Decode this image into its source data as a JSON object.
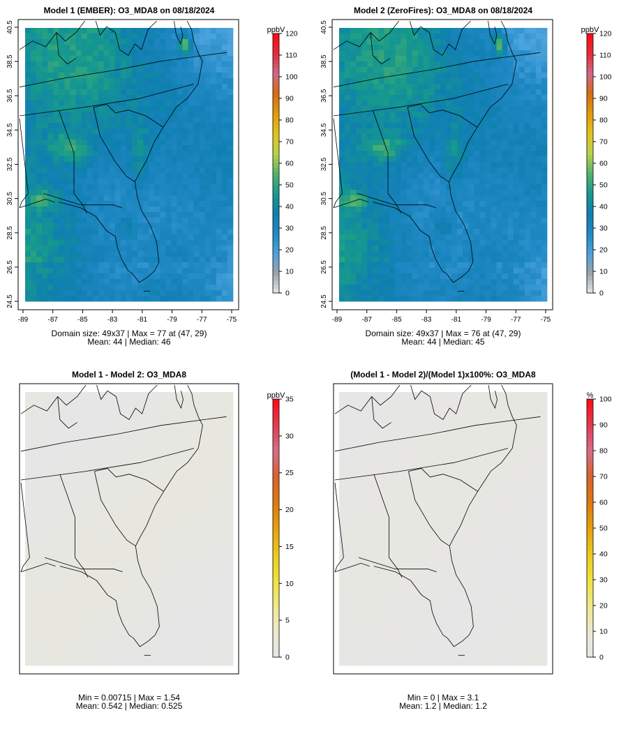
{
  "panels": [
    {
      "id": "m1",
      "title": "Model 1 (EMBER): O3_MDA8 on 08/18/2024",
      "unit": "ppbV",
      "variant": "ozone",
      "show_axes": true,
      "stats_line1": "Domain size: 49x37 | Max = 77 at (47, 29)",
      "stats_line2": "Mean: 44 |  Median: 46"
    },
    {
      "id": "m2",
      "title": "Model 2 (ZeroFires): O3_MDA8 on 08/18/2024",
      "unit": "ppbV",
      "variant": "ozone",
      "show_axes": true,
      "stats_line1": "Domain size: 49x37 | Max = 76 at (47, 29)",
      "stats_line2": "Mean: 44 |  Median: 45"
    },
    {
      "id": "diff",
      "title": "Model 1 - Model 2: O3_MDA8",
      "unit": "ppbV",
      "variant": "diff",
      "show_axes": false,
      "stats_line1": "Min = 0.00715 | Max = 1.54",
      "stats_line2": "Mean: 0.542 |  Median: 0.525"
    },
    {
      "id": "pct",
      "title": "(Model 1 - Model 2)/(Model 1)x100%: O3_MDA8",
      "unit": "%",
      "variant": "pct",
      "show_axes": false,
      "stats_line1": "Min = 0 | Max = 3.1",
      "stats_line2": "Mean: 1.2 |  Median: 1.2"
    }
  ],
  "chart_data": [
    {
      "type": "heatmap",
      "title": "Model 1 (EMBER): O3_MDA8 on 08/18/2024",
      "xlabel": "",
      "ylabel": "",
      "x_ticks": [
        "-89",
        "-87",
        "-85",
        "-83",
        "-81",
        "-79",
        "-77",
        "-75"
      ],
      "y_ticks": [
        "24.5",
        "26.5",
        "28.5",
        "30.5",
        "32.5",
        "34.5",
        "36.5",
        "38.5",
        "40.5"
      ],
      "xlim": [
        -89,
        -75
      ],
      "ylim": [
        24.5,
        40.5
      ],
      "colorbar_label": "ppbV",
      "colorbar_ticks": [
        "0",
        "10",
        "20",
        "30",
        "40",
        "50",
        "60",
        "70",
        "80",
        "90",
        "100",
        "110",
        "120"
      ],
      "colorbar_range": [
        0,
        120
      ],
      "domain_size": "49x37",
      "max": 77,
      "max_at": [
        47,
        29
      ],
      "mean": 44,
      "median": 46
    },
    {
      "type": "heatmap",
      "title": "Model 2 (ZeroFires): O3_MDA8 on 08/18/2024",
      "xlabel": "",
      "ylabel": "",
      "x_ticks": [
        "-89",
        "-87",
        "-85",
        "-83",
        "-81",
        "-79",
        "-77",
        "-75"
      ],
      "y_ticks": [
        "24.5",
        "26.5",
        "28.5",
        "30.5",
        "32.5",
        "34.5",
        "36.5",
        "38.5",
        "40.5"
      ],
      "xlim": [
        -89,
        -75
      ],
      "ylim": [
        24.5,
        40.5
      ],
      "colorbar_label": "ppbV",
      "colorbar_ticks": [
        "0",
        "10",
        "20",
        "30",
        "40",
        "50",
        "60",
        "70",
        "80",
        "90",
        "100",
        "110",
        "120"
      ],
      "colorbar_range": [
        0,
        120
      ],
      "domain_size": "49x37",
      "max": 76,
      "max_at": [
        47,
        29
      ],
      "mean": 44,
      "median": 45
    },
    {
      "type": "heatmap",
      "title": "Model 1 - Model 2: O3_MDA8",
      "colorbar_label": "ppbV",
      "colorbar_ticks": [
        "0",
        "5",
        "10",
        "15",
        "20",
        "25",
        "30",
        "35"
      ],
      "colorbar_range": [
        0,
        35
      ],
      "min": 0.00715,
      "max": 1.54,
      "mean": 0.542,
      "median": 0.525
    },
    {
      "type": "heatmap",
      "title": "(Model 1 - Model 2)/(Model 1)x100%: O3_MDA8",
      "colorbar_label": "%",
      "colorbar_ticks": [
        "0",
        "10",
        "20",
        "30",
        "40",
        "50",
        "60",
        "70",
        "80",
        "90",
        "100"
      ],
      "colorbar_range": [
        0,
        100
      ],
      "min": 0,
      "max": 3.1,
      "mean": 1.2,
      "median": 1.2
    }
  ],
  "colors": {
    "ozone_scale": [
      "#e6e6e6",
      "#9aa3ab",
      "#4aa3dc",
      "#1f88c4",
      "#0f7fb0",
      "#169a8c",
      "#57b36a",
      "#b9d34a",
      "#e4c21a",
      "#e39a0b",
      "#d76b10",
      "#cf6a86",
      "#e8293b",
      "#ff0a14"
    ],
    "diff_scale": [
      "#e6e6e6",
      "#ebe9cf",
      "#efe98a",
      "#f0e23a",
      "#edc91b",
      "#e6a10c",
      "#de7a0e",
      "#d8622f",
      "#d76e88",
      "#e33a4f",
      "#ff0a14"
    ],
    "map_lines": "#000000",
    "frame": "#000000"
  }
}
